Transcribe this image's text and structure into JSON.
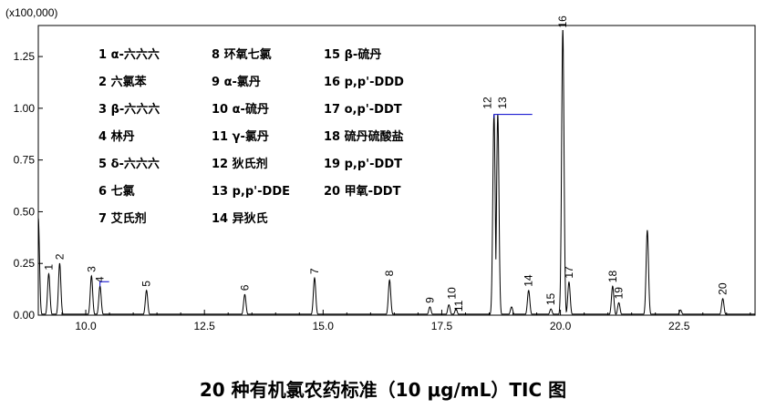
{
  "caption": "20 种有机氯农药标准（10 μg/mL）TIC 图",
  "chart_data": {
    "type": "line",
    "title": "",
    "xlabel": "",
    "ylabel": "",
    "y_scale_label": "(x100,000)",
    "xlim": [
      9.0,
      24.1
    ],
    "ylim": [
      0.0,
      1.4
    ],
    "x_ticks": [
      10.0,
      12.5,
      15.0,
      17.5,
      20.0,
      22.5
    ],
    "x_tick_labels": [
      "10.0",
      "12.5",
      "15.0",
      "17.5",
      "20.0",
      "22.5"
    ],
    "y_ticks": [
      0.0,
      0.25,
      0.5,
      0.75,
      1.0,
      1.25
    ],
    "y_tick_labels": [
      "0.00",
      "0.25",
      "0.50",
      "0.75",
      "1.00",
      "1.25"
    ],
    "baseline": 0.005,
    "line_color": "#000000",
    "marker_color": "#0000cc",
    "peaks": [
      {
        "id": "1",
        "x": 9.22,
        "y": 0.2
      },
      {
        "id": "2",
        "x": 9.45,
        "y": 0.25
      },
      {
        "id": "3",
        "x": 10.12,
        "y": 0.19
      },
      {
        "id": "4",
        "x": 10.3,
        "y": 0.14
      },
      {
        "id": "5",
        "x": 11.28,
        "y": 0.12
      },
      {
        "id": "6",
        "x": 13.35,
        "y": 0.1
      },
      {
        "id": "7",
        "x": 14.82,
        "y": 0.18
      },
      {
        "id": "8",
        "x": 16.4,
        "y": 0.17
      },
      {
        "id": "9",
        "x": 17.25,
        "y": 0.04
      },
      {
        "id": "10",
        "x": 17.65,
        "y": 0.05
      },
      {
        "id": "11",
        "x": 17.8,
        "y": 0.03
      },
      {
        "id": "12",
        "x": 18.6,
        "y": 0.97
      },
      {
        "id": "13",
        "x": 18.68,
        "y": 0.97
      },
      {
        "id": "14",
        "x": 19.33,
        "y": 0.12
      },
      {
        "id": "15",
        "x": 19.8,
        "y": 0.03
      },
      {
        "id": "16",
        "x": 20.05,
        "y": 1.38
      },
      {
        "id": "17",
        "x": 20.18,
        "y": 0.16
      },
      {
        "id": "18",
        "x": 21.1,
        "y": 0.14
      },
      {
        "id": "19",
        "x": 21.23,
        "y": 0.06
      },
      {
        "id": "20",
        "x": 23.42,
        "y": 0.08
      }
    ],
    "unlabeled_peaks": [
      {
        "x": 9.0,
        "y": 0.47
      },
      {
        "x": 18.97,
        "y": 0.04
      },
      {
        "x": 21.83,
        "y": 0.41
      },
      {
        "x": 22.53,
        "y": 0.025
      }
    ],
    "legend": [
      [
        "1 α-六六六",
        "2 六氯苯",
        "3 β-六六六",
        "4 林丹",
        "5 δ-六六六",
        "6 七氯",
        "7 艾氏剂"
      ],
      [
        "8 环氧七氯",
        "9 α-氯丹",
        "10 α-硫丹",
        "11 γ-氯丹",
        "12 狄氏剂",
        "13 p,p'-DDE",
        "14 异狄氏"
      ],
      [
        "15 β-硫丹",
        "16 p,p'-DDD",
        "17 o,p'-DDT",
        "18 硫丹硫酸盐",
        "19 p,p'-DDT",
        "20 甲氧-DDT"
      ]
    ]
  }
}
